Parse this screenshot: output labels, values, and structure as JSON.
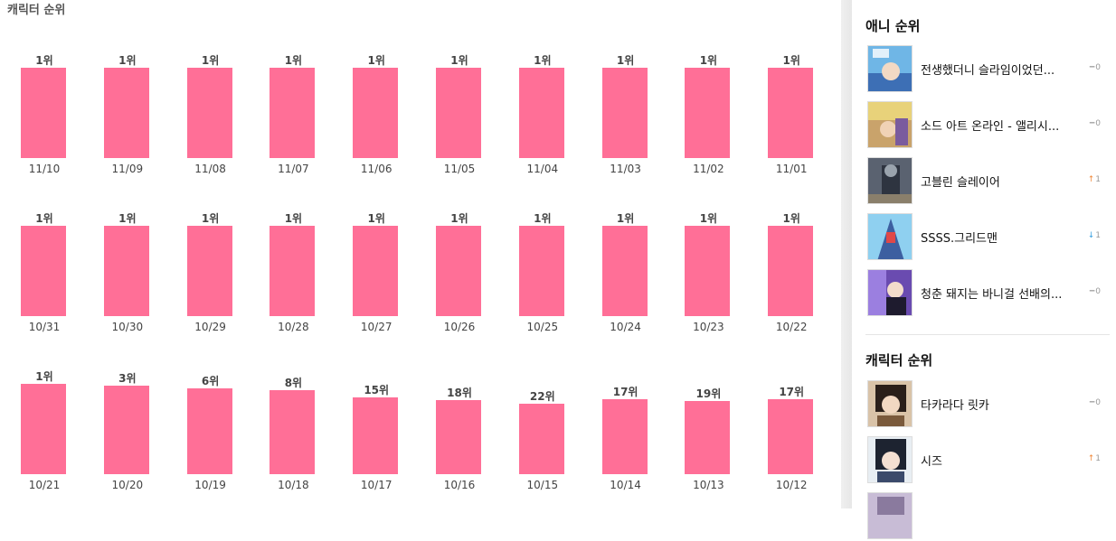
{
  "section_title": "캐릭터 순위",
  "chart_data": {
    "type": "bar",
    "title": "캐릭터 순위",
    "rows": [
      {
        "categories": [
          "11/10",
          "11/09",
          "11/08",
          "11/07",
          "11/06",
          "11/05",
          "11/04",
          "11/03",
          "11/02",
          "11/01"
        ],
        "ranks": [
          1,
          1,
          1,
          1,
          1,
          1,
          1,
          1,
          1,
          1
        ],
        "labels": [
          "1위",
          "1위",
          "1위",
          "1위",
          "1위",
          "1위",
          "1위",
          "1위",
          "1위",
          "1위"
        ]
      },
      {
        "categories": [
          "10/31",
          "10/30",
          "10/29",
          "10/28",
          "10/27",
          "10/26",
          "10/25",
          "10/24",
          "10/23",
          "10/22"
        ],
        "ranks": [
          1,
          1,
          1,
          1,
          1,
          1,
          1,
          1,
          1,
          1
        ],
        "labels": [
          "1위",
          "1위",
          "1위",
          "1위",
          "1위",
          "1위",
          "1위",
          "1위",
          "1위",
          "1위"
        ]
      },
      {
        "categories": [
          "10/21",
          "10/20",
          "10/19",
          "10/18",
          "10/17",
          "10/16",
          "10/15",
          "10/14",
          "10/13",
          "10/12"
        ],
        "ranks": [
          1,
          3,
          6,
          8,
          15,
          18,
          22,
          17,
          19,
          17
        ],
        "labels": [
          "1위",
          "3위",
          "6위",
          "8위",
          "15위",
          "18위",
          "22위",
          "17위",
          "19위",
          "17위"
        ]
      }
    ],
    "bar_color": "#ff6f97",
    "inverted_scale": true
  },
  "sidebar": {
    "anime_heading": "애니 순위",
    "anime": [
      {
        "title": "전생했더니 슬라임이었던...",
        "change_dir": "same",
        "change_icon": "dash-icon",
        "change": "0"
      },
      {
        "title": "소드 아트 온라인 - 앨리시...",
        "change_dir": "same",
        "change_icon": "dash-icon",
        "change": "0"
      },
      {
        "title": "고블린 슬레이어",
        "change_dir": "up",
        "change_icon": "arrow-up-icon",
        "change": "1"
      },
      {
        "title": "SSSS.그리드맨",
        "change_dir": "down",
        "change_icon": "arrow-down-icon",
        "change": "1"
      },
      {
        "title": "청춘 돼지는 바니걸 선배의...",
        "change_dir": "same",
        "change_icon": "dash-icon",
        "change": "0"
      }
    ],
    "character_heading": "캐릭터 순위",
    "characters": [
      {
        "name": "타카라다 릿카",
        "change_dir": "same",
        "change_icon": "dash-icon",
        "change": "0"
      },
      {
        "name": "시즈",
        "change_dir": "up",
        "change_icon": "arrow-up-icon",
        "change": "1"
      }
    ]
  },
  "colors": {
    "bar": "#ff6f97",
    "up": "#f08a3c",
    "down": "#3aa0e0",
    "same": "#aaaaaa"
  }
}
